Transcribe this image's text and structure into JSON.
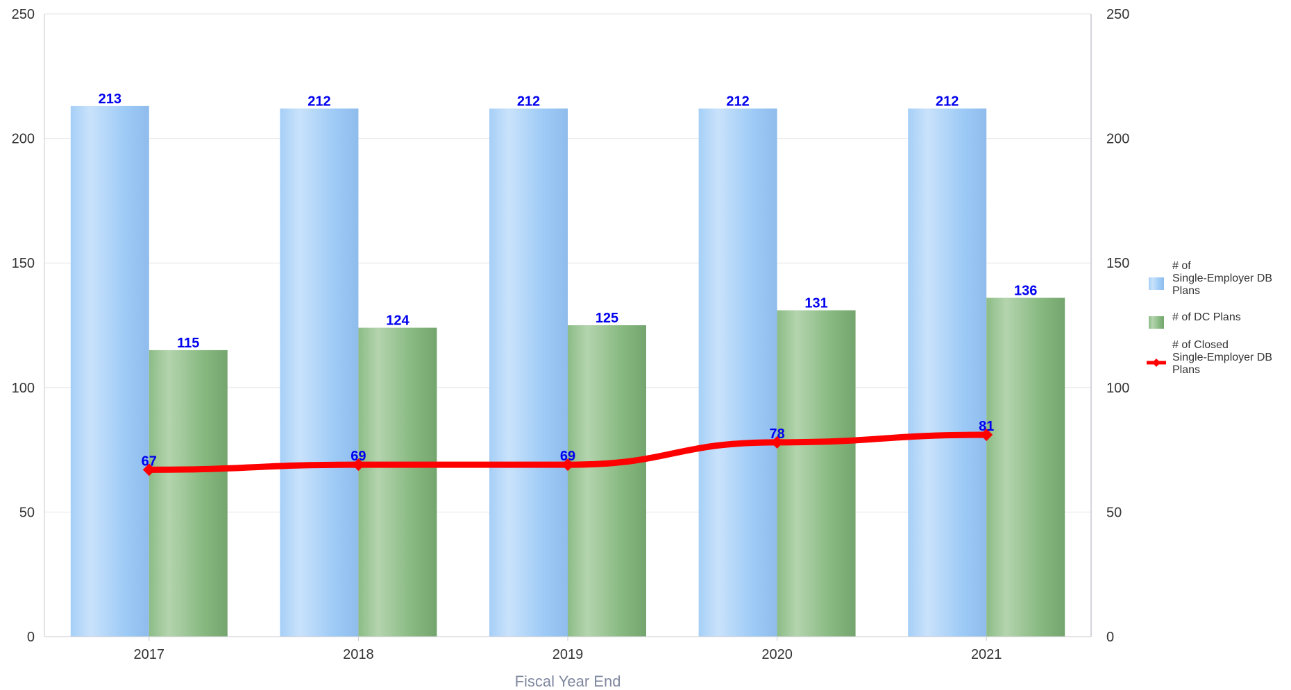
{
  "chart_data": {
    "type": "bar",
    "categories": [
      "2017",
      "2018",
      "2019",
      "2020",
      "2021"
    ],
    "series": [
      {
        "name": "# of Single-Employer DB Plans",
        "kind": "bar",
        "values": [
          213,
          212,
          212,
          212,
          212
        ],
        "color": "#99c7f5",
        "legend_lines": [
          "# of",
          "Single-Employer DB",
          "Plans"
        ]
      },
      {
        "name": "# of DC Plans",
        "kind": "bar",
        "values": [
          115,
          124,
          125,
          131,
          136
        ],
        "color": "#82b57b",
        "legend_lines": [
          "# of DC Plans"
        ]
      },
      {
        "name": "# of Closed Single-Employer DB Plans",
        "kind": "line",
        "values": [
          67,
          69,
          69,
          78,
          81
        ],
        "color": "#ff0000",
        "legend_lines": [
          "# of Closed",
          "Single-Employer DB",
          "Plans"
        ]
      }
    ],
    "title": "",
    "xlabel": "Fiscal Year End",
    "ylabel": "",
    "ylim": [
      0,
      250
    ],
    "y_ticks": [
      "0",
      "50",
      "100",
      "150",
      "200",
      "250"
    ],
    "secondary_y_ticks": [
      "0",
      "50",
      "100",
      "150",
      "200",
      "250"
    ],
    "grid": true,
    "legend_position": "right",
    "data_label_color": "#0000ee"
  }
}
